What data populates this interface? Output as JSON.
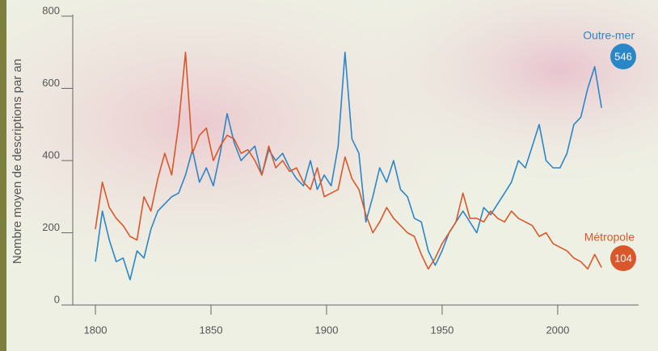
{
  "chart_data": {
    "type": "line",
    "y_label": "Nombre moyen de descriptions par an",
    "x": [
      1800,
      1803,
      1806,
      1809,
      1812,
      1815,
      1818,
      1821,
      1824,
      1827,
      1830,
      1833,
      1836,
      1839,
      1842,
      1845,
      1848,
      1851,
      1854,
      1857,
      1860,
      1863,
      1866,
      1869,
      1872,
      1875,
      1878,
      1881,
      1884,
      1887,
      1890,
      1893,
      1896,
      1899,
      1902,
      1905,
      1908,
      1911,
      1914,
      1917,
      1920,
      1923,
      1926,
      1929,
      1932,
      1935,
      1938,
      1941,
      1944,
      1947,
      1950,
      1953,
      1956,
      1959,
      1962,
      1965,
      1968,
      1971,
      1974,
      1977,
      1980,
      1983,
      1986,
      1989,
      1992,
      1995,
      1998,
      2001,
      2004,
      2007,
      2010,
      2013,
      2016,
      2019
    ],
    "series": [
      {
        "name": "Outre-mer",
        "color": "#2b86c8",
        "values": [
          120,
          260,
          180,
          120,
          130,
          70,
          150,
          130,
          210,
          260,
          280,
          300,
          310,
          360,
          430,
          340,
          380,
          330,
          420,
          530,
          450,
          400,
          420,
          440,
          360,
          430,
          400,
          420,
          380,
          350,
          330,
          400,
          320,
          360,
          330,
          440,
          700,
          460,
          420,
          230,
          300,
          380,
          340,
          400,
          320,
          300,
          240,
          230,
          150,
          110,
          150,
          200,
          230,
          260,
          230,
          200,
          270,
          250,
          280,
          310,
          340,
          400,
          380,
          440,
          500,
          400,
          380,
          380,
          420,
          500,
          520,
          600,
          660,
          546
        ]
      },
      {
        "name": "Métropole",
        "color": "#d9572a",
        "values": [
          210,
          340,
          270,
          240,
          220,
          190,
          180,
          300,
          260,
          350,
          420,
          360,
          500,
          700,
          420,
          470,
          490,
          400,
          440,
          470,
          460,
          420,
          430,
          400,
          360,
          440,
          380,
          400,
          370,
          380,
          340,
          320,
          380,
          300,
          310,
          320,
          410,
          350,
          320,
          250,
          200,
          230,
          270,
          240,
          220,
          200,
          190,
          140,
          100,
          130,
          170,
          200,
          230,
          310,
          240,
          240,
          230,
          260,
          240,
          230,
          260,
          240,
          230,
          220,
          190,
          200,
          170,
          160,
          150,
          130,
          120,
          100,
          140,
          104
        ]
      }
    ],
    "xlim": [
      1789.5,
      2035
    ],
    "ylim": [
      0,
      800
    ],
    "xticks": [
      1800,
      1850,
      1900,
      1950,
      2000
    ],
    "yticks": [
      0,
      200,
      400,
      600,
      800
    ]
  }
}
